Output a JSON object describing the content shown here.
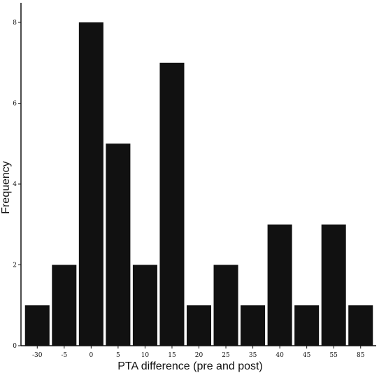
{
  "chart_data": {
    "type": "bar",
    "categories": [
      "-30",
      "-5",
      "0",
      "5",
      "10",
      "15",
      "20",
      "25",
      "35",
      "40",
      "45",
      "55",
      "85"
    ],
    "values": [
      1,
      2,
      8,
      5,
      2,
      7,
      1,
      2,
      1,
      3,
      1,
      3,
      1
    ],
    "xlabel": "PTA difference (pre and post)",
    "ylabel": "Frequency",
    "ylim": [
      0,
      9
    ],
    "yticks": [
      "0",
      "2",
      "4",
      "6",
      "8"
    ],
    "grid": false,
    "bar_color": "#111111"
  }
}
